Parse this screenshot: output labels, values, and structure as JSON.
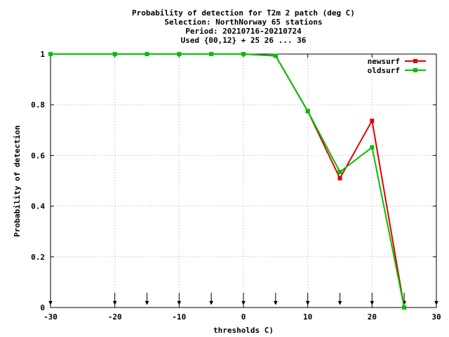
{
  "chart_data": {
    "type": "line",
    "title_lines": [
      "Probability of detection  for T2m 2 patch (deg C)",
      "Selection: NorthNorway     65 stations",
      "Period: 20210716-20210724",
      "Used {00,12} + 25 26 ... 36"
    ],
    "xlabel": "thresholds C)",
    "ylabel": "Probability of detection",
    "xlim": [
      -30,
      30
    ],
    "ylim": [
      0,
      1
    ],
    "xticks": [
      "-30",
      "-20",
      "-10",
      "0",
      "10",
      "20",
      "30"
    ],
    "xtick_values": [
      -30,
      -20,
      -10,
      0,
      10,
      20,
      30
    ],
    "yticks": [
      "0",
      "0.2",
      "0.4",
      "0.6",
      "0.8",
      "1"
    ],
    "ytick_values": [
      0,
      0.2,
      0.4,
      0.6,
      0.8,
      1
    ],
    "grid": true,
    "legend_position": "top-right",
    "threshold_markers": [
      -30,
      -20,
      -15,
      -10,
      -5,
      0,
      5,
      10,
      15,
      20,
      25,
      30
    ],
    "x": [
      -30,
      -20,
      -15,
      -10,
      -5,
      0,
      5,
      10,
      15,
      20,
      25
    ],
    "series": [
      {
        "name": "newsurf",
        "color": "#e00000",
        "values": [
          1,
          1,
          1,
          1,
          1,
          1,
          0.993,
          0.775,
          0.51,
          0.737,
          0
        ]
      },
      {
        "name": "oldsurf",
        "color": "#00c000",
        "values": [
          1,
          1,
          1,
          1,
          1,
          1,
          0.993,
          0.775,
          0.535,
          0.632,
          0
        ]
      }
    ]
  }
}
